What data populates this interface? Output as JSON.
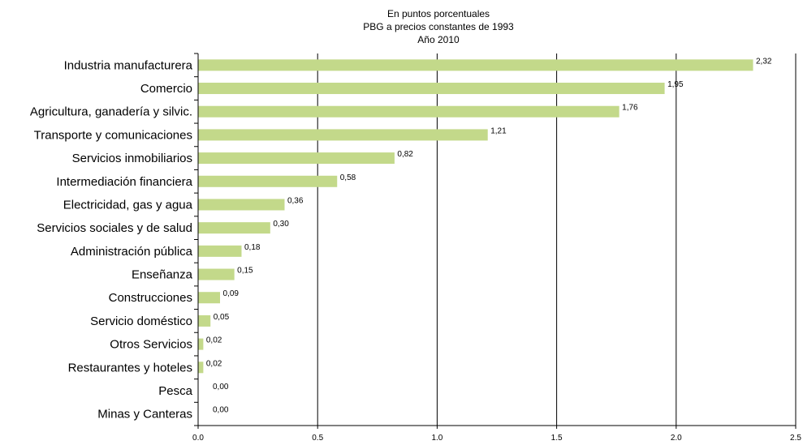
{
  "chart_data": {
    "type": "bar",
    "orientation": "horizontal",
    "subtitle_lines": [
      "En puntos porcentuales",
      "PBG a precios constantes de 1993",
      "Año 2010"
    ],
    "categories": [
      "Industria manufacturera",
      "Comercio",
      "Agricultura, ganadería y silvic.",
      "Transporte y comunicaciones",
      "Servicios inmobiliarios",
      "Intermediación financiera",
      "Electricidad, gas y agua",
      "Servicios sociales y de salud",
      "Administración pública",
      "Enseñanza",
      "Construcciones",
      "Servicio doméstico",
      "Otros Servicios",
      "Restaurantes y hoteles",
      "Pesca",
      "Minas y Canteras"
    ],
    "values": [
      2.32,
      1.95,
      1.76,
      1.21,
      0.82,
      0.58,
      0.36,
      0.3,
      0.18,
      0.15,
      0.09,
      0.05,
      0.02,
      0.02,
      0.0,
      0.0
    ],
    "data_labels": [
      "2,32",
      "1,95",
      "1,76",
      "1,21",
      "0,82",
      "0,58",
      "0,36",
      "0,30",
      "0,18",
      "0,15",
      "0,09",
      "0,05",
      "0,02",
      "0,02",
      "0,00",
      "0,00"
    ],
    "xlim": [
      0,
      2.5
    ],
    "x_ticks": [
      0,
      0.5,
      1.0,
      1.5,
      2.0,
      2.5
    ],
    "x_tick_labels": [
      "0.0",
      "0.5",
      "1.0",
      "1.5",
      "2.0",
      "2.5"
    ],
    "grid": "vertical lines at major ticks",
    "bar_color": "#c3d98a",
    "legend": "none"
  }
}
